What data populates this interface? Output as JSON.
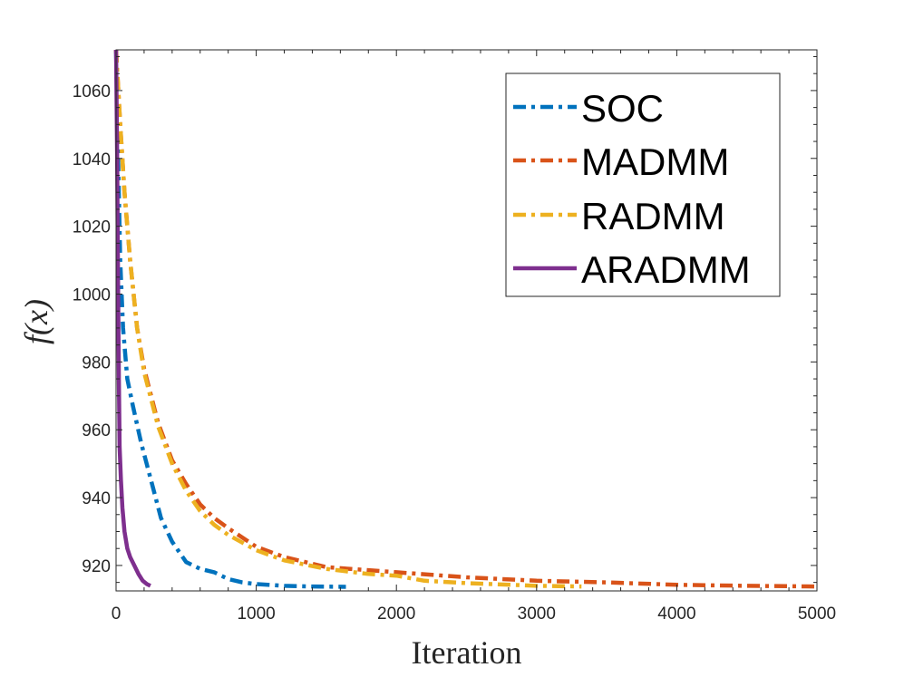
{
  "chart_data": {
    "type": "line",
    "title": "",
    "xlabel": "Iteration",
    "ylabel": "f(x)",
    "xlim": [
      0,
      5000
    ],
    "ylim": [
      912.5,
      1072
    ],
    "xticks": [
      0,
      1000,
      2000,
      3000,
      4000,
      5000
    ],
    "yticks": [
      920,
      940,
      960,
      980,
      1000,
      1020,
      1040,
      1060
    ],
    "legend_position": "top-right",
    "grid": false,
    "series": [
      {
        "name": "SOC",
        "color": "#0072BD",
        "style": "dashdot",
        "points": [
          [
            0,
            1072
          ],
          [
            15,
            1040
          ],
          [
            30,
            1010
          ],
          [
            50,
            990
          ],
          [
            80,
            975
          ],
          [
            120,
            967
          ],
          [
            180,
            956
          ],
          [
            250,
            945
          ],
          [
            320,
            934
          ],
          [
            400,
            927
          ],
          [
            500,
            921
          ],
          [
            600,
            919
          ],
          [
            700,
            918
          ],
          [
            800,
            916
          ],
          [
            900,
            915
          ],
          [
            1000,
            914.5
          ],
          [
            1200,
            914
          ],
          [
            1400,
            913.8
          ],
          [
            1640,
            913.7
          ]
        ]
      },
      {
        "name": "MADMM",
        "color": "#D95319",
        "style": "dashdot",
        "points": [
          [
            0,
            1072
          ],
          [
            30,
            1050
          ],
          [
            60,
            1030
          ],
          [
            100,
            1010
          ],
          [
            150,
            990
          ],
          [
            200,
            978
          ],
          [
            300,
            962
          ],
          [
            400,
            951
          ],
          [
            500,
            944
          ],
          [
            600,
            938
          ],
          [
            700,
            934
          ],
          [
            800,
            931
          ],
          [
            1000,
            925.5
          ],
          [
            1200,
            922.5
          ],
          [
            1500,
            919.5
          ],
          [
            2000,
            918
          ],
          [
            2500,
            916.5
          ],
          [
            3000,
            915.5
          ],
          [
            3500,
            915
          ],
          [
            4000,
            914.3
          ],
          [
            4500,
            914
          ],
          [
            5000,
            913.8
          ]
        ]
      },
      {
        "name": "RADMM",
        "color": "#EDB120",
        "style": "dashdot",
        "points": [
          [
            0,
            1072
          ],
          [
            30,
            1050
          ],
          [
            60,
            1030
          ],
          [
            100,
            1010
          ],
          [
            150,
            990
          ],
          [
            200,
            977
          ],
          [
            300,
            961
          ],
          [
            400,
            950
          ],
          [
            500,
            942
          ],
          [
            600,
            936
          ],
          [
            700,
            932
          ],
          [
            800,
            929
          ],
          [
            1000,
            924.5
          ],
          [
            1200,
            921.5
          ],
          [
            1500,
            919
          ],
          [
            1800,
            917.5
          ],
          [
            2000,
            917
          ],
          [
            2200,
            915.5
          ],
          [
            2500,
            914.8
          ],
          [
            3000,
            914
          ],
          [
            3320,
            913.8
          ]
        ]
      },
      {
        "name": "ARADMM",
        "color": "#7E2F8E",
        "style": "solid",
        "points": [
          [
            0,
            1072
          ],
          [
            8,
            1040
          ],
          [
            15,
            1000
          ],
          [
            20,
            975
          ],
          [
            25,
            955
          ],
          [
            35,
            945
          ],
          [
            45,
            937
          ],
          [
            60,
            930
          ],
          [
            80,
            925
          ],
          [
            100,
            922.5
          ],
          [
            130,
            920
          ],
          [
            160,
            917.5
          ],
          [
            190,
            915.5
          ],
          [
            220,
            914.5
          ],
          [
            245,
            914
          ]
        ]
      }
    ]
  }
}
